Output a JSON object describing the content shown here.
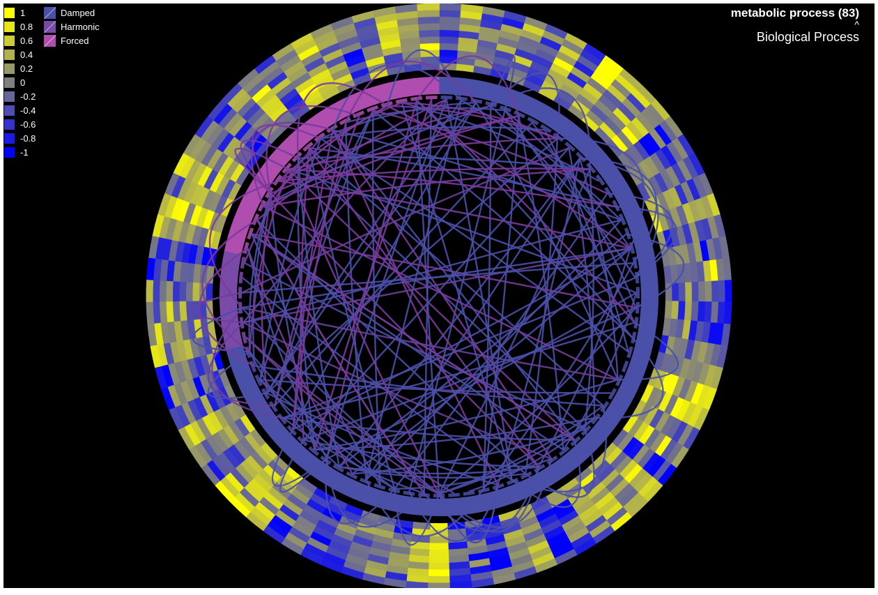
{
  "legend_scale": [
    {
      "label": "1",
      "color": "#ffff00"
    },
    {
      "label": "0.8",
      "color": "#e6e61a"
    },
    {
      "label": "0.6",
      "color": "#cccc33"
    },
    {
      "label": "0.4",
      "color": "#b3b34d"
    },
    {
      "label": "0.2",
      "color": "#999966"
    },
    {
      "label": "0",
      "color": "#808080"
    },
    {
      "label": "-0.2",
      "color": "#666699"
    },
    {
      "label": "-0.4",
      "color": "#4d4db3"
    },
    {
      "label": "-0.6",
      "color": "#3333cc"
    },
    {
      "label": "-0.8",
      "color": "#1a1ae6"
    },
    {
      "label": "-1",
      "color": "#0000ff"
    }
  ],
  "legend_classes": [
    {
      "label": "Damped",
      "color": "#4a4fa8"
    },
    {
      "label": "Harmonic",
      "color": "#7a4aa8"
    },
    {
      "label": "Forced",
      "color": "#b04eb0"
    }
  ],
  "title": {
    "term": "metabolic process (83)",
    "caret": "^",
    "ontology": "Biological Process"
  },
  "chart_data": {
    "type": "chord",
    "gene_count": 83,
    "groups": [
      {
        "name": "Damped",
        "color": "#4a4fa8",
        "count": 59
      },
      {
        "name": "Harmonic",
        "color": "#7a4aa8",
        "count": 6
      },
      {
        "name": "Forced",
        "color": "#b04eb0",
        "count": 18
      }
    ],
    "heatmap_rings": 10,
    "value_range": [
      -1,
      1
    ]
  }
}
